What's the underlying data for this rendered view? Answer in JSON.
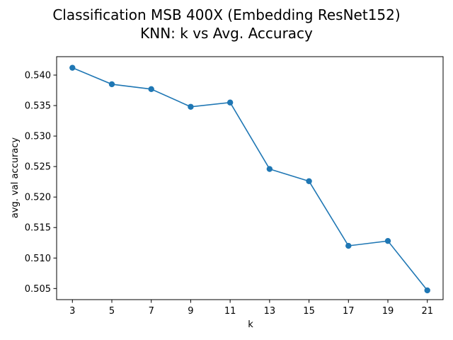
{
  "chart_data": {
    "type": "line",
    "title_lines": [
      "Classification MSB 400X (Embedding ResNet152)",
      "KNN: k vs  Avg. Accuracy"
    ],
    "xlabel": "k",
    "ylabel": "avg. val accuracy",
    "x": [
      3,
      5,
      7,
      9,
      11,
      13,
      15,
      17,
      19,
      21
    ],
    "series": [
      {
        "values": [
          0.5412,
          0.5385,
          0.5377,
          0.5348,
          0.5355,
          0.5246,
          0.5226,
          0.512,
          0.5128,
          0.5047
        ]
      }
    ],
    "xticks": [
      "3",
      "5",
      "7",
      "9",
      "11",
      "13",
      "15",
      "17",
      "19",
      "21"
    ],
    "yticks": [
      "0.505",
      "0.510",
      "0.515",
      "0.520",
      "0.525",
      "0.530",
      "0.535",
      "0.540"
    ],
    "xlim": [
      2.2,
      21.8
    ],
    "ylim": [
      0.50318,
      0.54302
    ],
    "marker": "circle",
    "grid": false,
    "color": "#1f77b4"
  }
}
